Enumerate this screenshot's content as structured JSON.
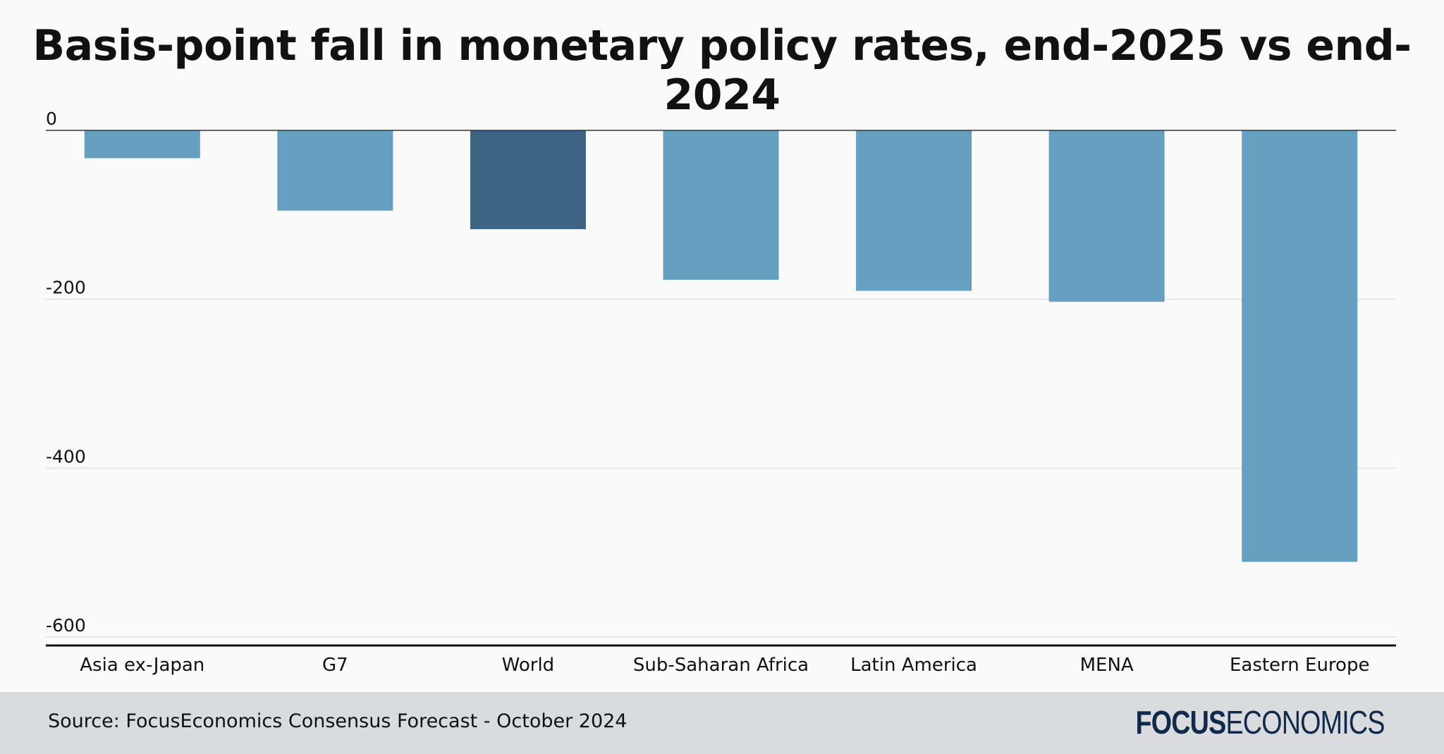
{
  "colors": {
    "background": "#fafafa",
    "bar": "#66a0c1",
    "bar_highlight": "#3d6385",
    "footer": "#dadbdf",
    "brand": "#102a4c"
  },
  "chart_data": {
    "type": "bar",
    "title": "Basis-point fall in monetary policy rates, end-2025 vs end-2024",
    "xlabel": "",
    "ylabel": "",
    "ylim": [
      -600,
      0
    ],
    "yticks": [
      0,
      -200,
      -400,
      -600
    ],
    "ytick_labels": [
      "0",
      "-200",
      "-400",
      "-600"
    ],
    "grid": true,
    "legend": "none",
    "categories": [
      "Asia ex-Japan",
      "G7",
      "World",
      "Sub-Saharan Africa",
      "Latin America",
      "MENA",
      "Eastern Europe"
    ],
    "values": [
      -33,
      -95,
      -117,
      -177,
      -190,
      -203,
      -511
    ],
    "highlight": "World"
  },
  "footer": {
    "source": "Source: FocusEconomics Consensus Forecast - October 2024",
    "brand_bold": "FOCUS",
    "brand_light": "ECONOMICS"
  }
}
